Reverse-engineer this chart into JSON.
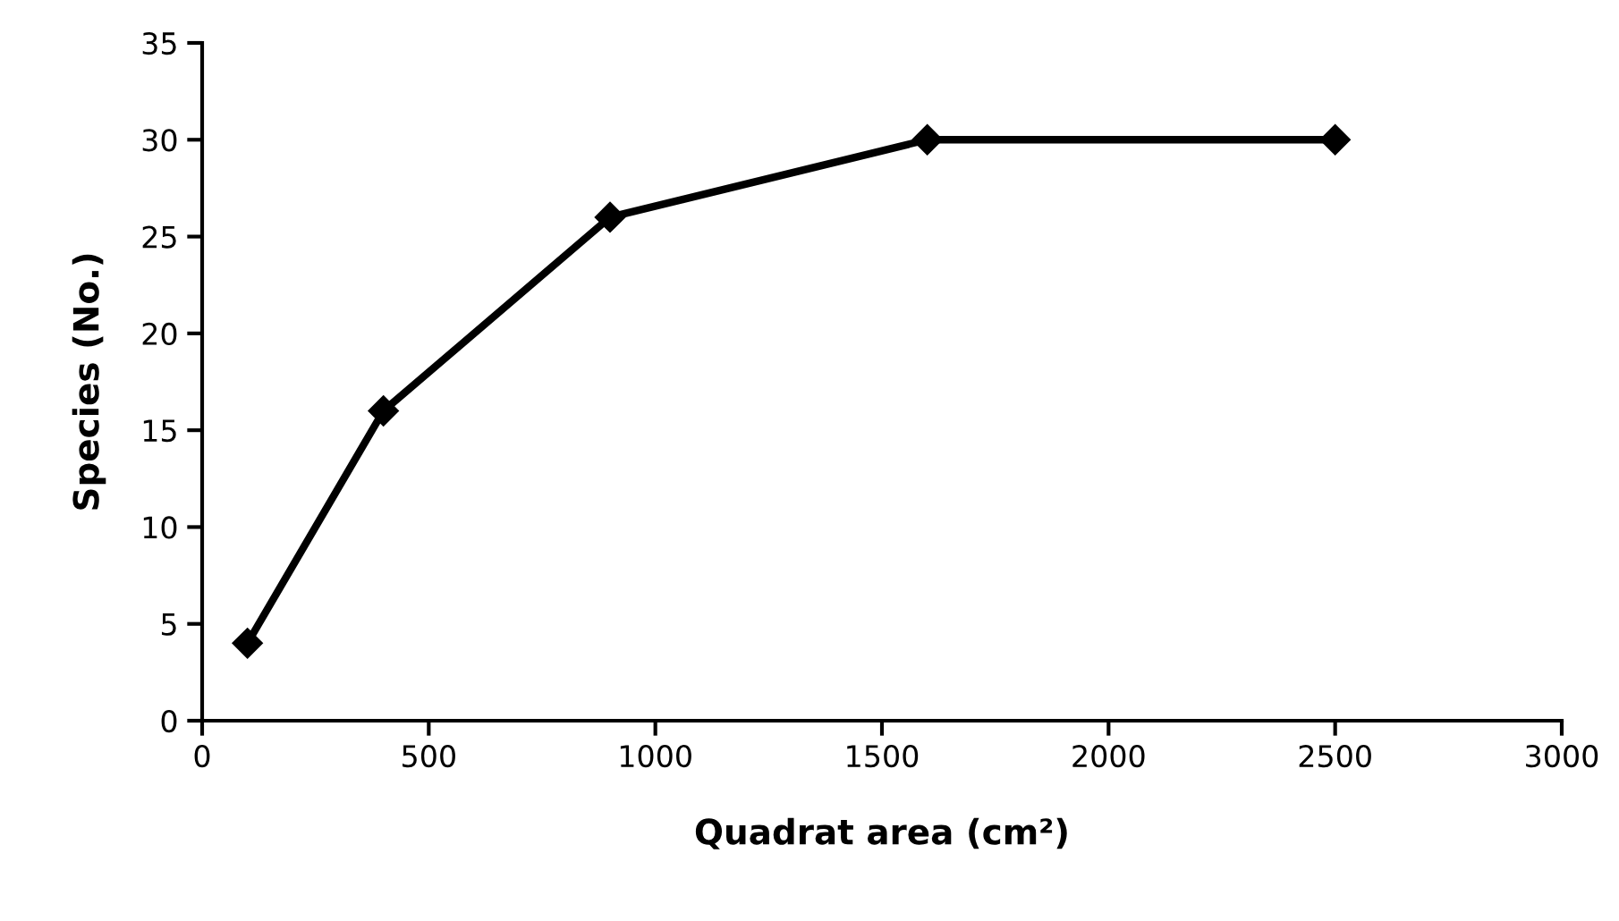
{
  "chart_data": {
    "type": "line",
    "xlabel": "Quadrat area (cm²)",
    "ylabel": "Species (No.)",
    "x": [
      100,
      400,
      900,
      1600,
      2500
    ],
    "series": [
      {
        "color": "#000000",
        "values": [
          4,
          16,
          26,
          30,
          30
        ]
      }
    ],
    "xlim": [
      0,
      3000
    ],
    "xticks": [
      0,
      500,
      1000,
      1500,
      2000,
      2500,
      3000
    ],
    "ylim": [
      0,
      35
    ],
    "yticks": [
      0,
      5,
      10,
      15,
      20,
      25,
      30,
      35
    ],
    "grid": false,
    "legend": false,
    "marker": "diamond",
    "line_style": "solid"
  }
}
